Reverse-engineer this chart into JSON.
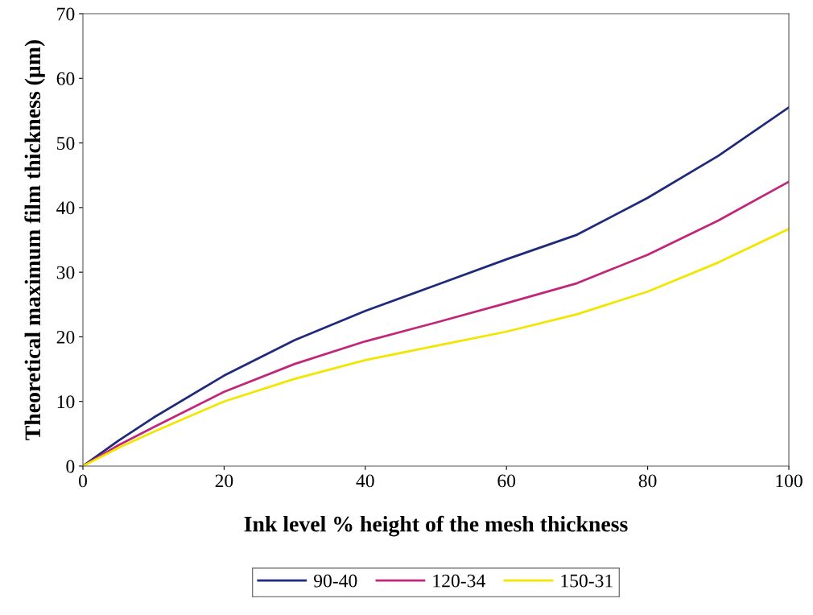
{
  "chart_data": {
    "type": "line",
    "xlabel": "Ink level % height of the mesh thickness",
    "ylabel": "Theoretical maximum film thickness (µm)",
    "x": [
      0,
      5,
      10,
      20,
      30,
      40,
      50,
      60,
      70,
      80,
      90,
      100
    ],
    "series": [
      {
        "name": "90-40",
        "color": "#1f2a7a",
        "values": [
          0,
          3.9,
          7.5,
          14,
          19.5,
          24,
          28,
          32,
          35.8,
          41.5,
          48,
          55.5
        ]
      },
      {
        "name": "120-34",
        "color": "#c0267a",
        "values": [
          0,
          3.2,
          6,
          11.5,
          15.8,
          19.3,
          22.2,
          25.2,
          28.3,
          32.7,
          38,
          44
        ]
      },
      {
        "name": "150-31",
        "color": "#f2e600",
        "values": [
          0,
          2.8,
          5.3,
          10,
          13.5,
          16.4,
          18.6,
          20.8,
          23.5,
          27,
          31.5,
          36.7
        ]
      }
    ],
    "xlim": [
      0,
      100
    ],
    "xticks": [
      0,
      20,
      40,
      60,
      80,
      100
    ],
    "ylim": [
      0,
      70
    ],
    "yticks": [
      0,
      10,
      20,
      30,
      40,
      50,
      60,
      70
    ],
    "grid": false,
    "legend": "bottom",
    "marker": "none",
    "line_style": "solid"
  }
}
